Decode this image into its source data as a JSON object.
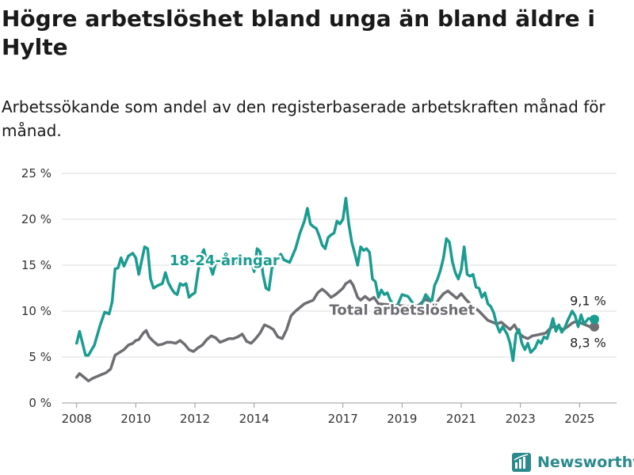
{
  "title": "Högre arbetslöshet bland unga än bland äldre i Hylte",
  "subtitle": "Arbetssökande som andel av den registerbaserade arbetskraften månad för månad.",
  "brand": "Newsworthy",
  "chart_data": {
    "type": "line",
    "ylim": [
      0,
      25
    ],
    "xlim": [
      2007.5,
      2026.25
    ],
    "y_ticks": [
      {
        "value": 0,
        "label": "0 %"
      },
      {
        "value": 5,
        "label": "5 %"
      },
      {
        "value": 10,
        "label": "10 %"
      },
      {
        "value": 15,
        "label": "15 %"
      },
      {
        "value": 20,
        "label": "20 %"
      },
      {
        "value": 25,
        "label": "25 %"
      }
    ],
    "x_ticks": [
      {
        "value": 2008,
        "label": "2008"
      },
      {
        "value": 2010,
        "label": "2010"
      },
      {
        "value": 2012,
        "label": "2012"
      },
      {
        "value": 2014,
        "label": "2014"
      },
      {
        "value": 2017,
        "label": "2017"
      },
      {
        "value": 2019,
        "label": "2019"
      },
      {
        "value": 2021,
        "label": "2021"
      },
      {
        "value": 2023,
        "label": "2023"
      },
      {
        "value": 2025,
        "label": "2025"
      }
    ],
    "grid": true,
    "series": [
      {
        "name": "18-24-åringar",
        "color": "#1a9c90",
        "end_label": "9,1 %",
        "points": [
          [
            2008.0,
            6.5
          ],
          [
            2008.1,
            7.8
          ],
          [
            2008.3,
            5.2
          ],
          [
            2008.4,
            5.2
          ],
          [
            2008.6,
            6.3
          ],
          [
            2008.8,
            8.5
          ],
          [
            2008.95,
            9.9
          ],
          [
            2009.1,
            9.7
          ],
          [
            2009.2,
            11.0
          ],
          [
            2009.3,
            14.6
          ],
          [
            2009.4,
            14.7
          ],
          [
            2009.5,
            15.8
          ],
          [
            2009.6,
            14.9
          ],
          [
            2009.75,
            16.0
          ],
          [
            2009.9,
            16.3
          ],
          [
            2010.0,
            15.8
          ],
          [
            2010.1,
            14.0
          ],
          [
            2010.2,
            15.5
          ],
          [
            2010.3,
            17.0
          ],
          [
            2010.4,
            16.8
          ],
          [
            2010.5,
            13.5
          ],
          [
            2010.6,
            12.5
          ],
          [
            2010.75,
            12.8
          ],
          [
            2010.9,
            13.0
          ],
          [
            2011.0,
            14.2
          ],
          [
            2011.1,
            13.1
          ],
          [
            2011.2,
            12.5
          ],
          [
            2011.3,
            12.0
          ],
          [
            2011.4,
            11.8
          ],
          [
            2011.5,
            13.0
          ],
          [
            2011.6,
            12.8
          ],
          [
            2011.7,
            13.0
          ],
          [
            2011.8,
            11.5
          ],
          [
            2011.9,
            11.8
          ],
          [
            2012.0,
            12.0
          ],
          [
            2012.1,
            14.2
          ],
          [
            2012.2,
            16.0
          ],
          [
            2012.3,
            16.7
          ],
          [
            2012.4,
            15.3
          ],
          [
            2012.5,
            15.0
          ],
          [
            2012.6,
            14.0
          ],
          [
            2012.7,
            15.2
          ],
          [
            2013.0,
            15.5
          ],
          [
            2013.3,
            15.3
          ],
          [
            2013.6,
            15.2
          ],
          [
            2013.9,
            15.4
          ],
          [
            2014.0,
            14.3
          ],
          [
            2014.1,
            16.8
          ],
          [
            2014.2,
            16.5
          ],
          [
            2014.3,
            14.0
          ],
          [
            2014.4,
            12.5
          ],
          [
            2014.5,
            12.3
          ],
          [
            2014.6,
            14.7
          ],
          [
            2014.7,
            15.2
          ],
          [
            2014.8,
            15.8
          ],
          [
            2014.9,
            16.2
          ],
          [
            2015.0,
            15.6
          ],
          [
            2015.2,
            15.3
          ],
          [
            2015.4,
            16.8
          ],
          [
            2015.55,
            18.5
          ],
          [
            2015.7,
            19.8
          ],
          [
            2015.8,
            21.2
          ],
          [
            2015.9,
            19.5
          ],
          [
            2016.0,
            19.2
          ],
          [
            2016.1,
            19.0
          ],
          [
            2016.2,
            18.2
          ],
          [
            2016.3,
            17.2
          ],
          [
            2016.4,
            16.8
          ],
          [
            2016.5,
            18.0
          ],
          [
            2016.6,
            18.3
          ],
          [
            2016.7,
            18.5
          ],
          [
            2016.8,
            19.8
          ],
          [
            2016.9,
            19.5
          ],
          [
            2017.0,
            20.0
          ],
          [
            2017.1,
            22.3
          ],
          [
            2017.2,
            19.5
          ],
          [
            2017.3,
            17.5
          ],
          [
            2017.4,
            16.3
          ],
          [
            2017.5,
            15.0
          ],
          [
            2017.6,
            17.0
          ],
          [
            2017.7,
            16.6
          ],
          [
            2017.8,
            16.8
          ],
          [
            2017.9,
            16.4
          ],
          [
            2018.0,
            13.5
          ],
          [
            2018.1,
            13.2
          ],
          [
            2018.2,
            11.5
          ],
          [
            2018.3,
            12.3
          ],
          [
            2018.4,
            11.8
          ],
          [
            2018.5,
            12.0
          ],
          [
            2018.6,
            11.2
          ],
          [
            2018.8,
            10.3
          ],
          [
            2019.0,
            11.8
          ],
          [
            2019.2,
            11.6
          ],
          [
            2019.4,
            10.7
          ],
          [
            2019.6,
            10.3
          ],
          [
            2019.8,
            11.8
          ],
          [
            2019.95,
            11.2
          ],
          [
            2020.0,
            11.0
          ],
          [
            2020.1,
            12.8
          ],
          [
            2020.2,
            13.5
          ],
          [
            2020.3,
            14.5
          ],
          [
            2020.4,
            15.8
          ],
          [
            2020.5,
            17.9
          ],
          [
            2020.6,
            17.5
          ],
          [
            2020.7,
            15.4
          ],
          [
            2020.8,
            14.2
          ],
          [
            2020.9,
            13.5
          ],
          [
            2021.0,
            14.5
          ],
          [
            2021.1,
            17.0
          ],
          [
            2021.2,
            14.0
          ],
          [
            2021.3,
            13.8
          ],
          [
            2021.4,
            14.0
          ],
          [
            2021.5,
            12.6
          ],
          [
            2021.6,
            12.5
          ],
          [
            2021.7,
            11.5
          ],
          [
            2021.8,
            12.0
          ],
          [
            2021.9,
            10.8
          ],
          [
            2022.0,
            10.5
          ],
          [
            2022.1,
            9.8
          ],
          [
            2022.2,
            8.5
          ],
          [
            2022.3,
            7.7
          ],
          [
            2022.4,
            8.3
          ],
          [
            2022.55,
            7.5
          ],
          [
            2022.65,
            6.5
          ],
          [
            2022.75,
            4.6
          ],
          [
            2022.85,
            7.5
          ],
          [
            2022.95,
            8.0
          ],
          [
            2023.05,
            6.5
          ],
          [
            2023.15,
            5.8
          ],
          [
            2023.25,
            6.5
          ],
          [
            2023.35,
            5.5
          ],
          [
            2023.5,
            6.0
          ],
          [
            2023.6,
            6.8
          ],
          [
            2023.7,
            6.5
          ],
          [
            2023.8,
            7.2
          ],
          [
            2023.9,
            7.0
          ],
          [
            2024.0,
            8.0
          ],
          [
            2024.1,
            9.2
          ],
          [
            2024.2,
            7.8
          ],
          [
            2024.3,
            8.5
          ],
          [
            2024.4,
            7.7
          ],
          [
            2024.5,
            8.2
          ],
          [
            2024.6,
            9.0
          ],
          [
            2024.75,
            10.0
          ],
          [
            2024.85,
            9.5
          ],
          [
            2024.95,
            8.3
          ],
          [
            2025.05,
            9.6
          ],
          [
            2025.15,
            8.6
          ],
          [
            2025.3,
            9.2
          ],
          [
            2025.5,
            9.1
          ]
        ]
      },
      {
        "name": "Total arbetslöshet",
        "color": "#6e6d72",
        "end_label": "8,3 %",
        "points": [
          [
            2008.0,
            2.8
          ],
          [
            2008.1,
            3.2
          ],
          [
            2008.25,
            2.8
          ],
          [
            2008.4,
            2.4
          ],
          [
            2008.55,
            2.7
          ],
          [
            2008.7,
            2.9
          ],
          [
            2008.85,
            3.1
          ],
          [
            2009.0,
            3.3
          ],
          [
            2009.15,
            3.7
          ],
          [
            2009.3,
            5.2
          ],
          [
            2009.45,
            5.5
          ],
          [
            2009.6,
            5.8
          ],
          [
            2009.75,
            6.3
          ],
          [
            2009.9,
            6.5
          ],
          [
            2010.0,
            6.8
          ],
          [
            2010.1,
            6.9
          ],
          [
            2010.25,
            7.6
          ],
          [
            2010.35,
            7.9
          ],
          [
            2010.45,
            7.2
          ],
          [
            2010.6,
            6.7
          ],
          [
            2010.75,
            6.3
          ],
          [
            2010.9,
            6.4
          ],
          [
            2011.05,
            6.6
          ],
          [
            2011.2,
            6.6
          ],
          [
            2011.35,
            6.5
          ],
          [
            2011.5,
            6.8
          ],
          [
            2011.65,
            6.4
          ],
          [
            2011.8,
            5.8
          ],
          [
            2011.95,
            5.6
          ],
          [
            2012.1,
            6.0
          ],
          [
            2012.25,
            6.3
          ],
          [
            2012.4,
            6.9
          ],
          [
            2012.55,
            7.3
          ],
          [
            2012.7,
            7.1
          ],
          [
            2012.85,
            6.6
          ],
          [
            2013.0,
            6.8
          ],
          [
            2013.15,
            7.0
          ],
          [
            2013.3,
            7.0
          ],
          [
            2013.45,
            7.2
          ],
          [
            2013.6,
            7.5
          ],
          [
            2013.75,
            6.7
          ],
          [
            2013.9,
            6.5
          ],
          [
            2014.05,
            7.0
          ],
          [
            2014.2,
            7.6
          ],
          [
            2014.35,
            8.5
          ],
          [
            2014.5,
            8.3
          ],
          [
            2014.65,
            8.0
          ],
          [
            2014.8,
            7.2
          ],
          [
            2014.95,
            7.0
          ],
          [
            2015.1,
            8.0
          ],
          [
            2015.25,
            9.5
          ],
          [
            2015.4,
            10.0
          ],
          [
            2015.55,
            10.4
          ],
          [
            2015.7,
            10.8
          ],
          [
            2015.85,
            11.0
          ],
          [
            2016.0,
            11.2
          ],
          [
            2016.15,
            12.0
          ],
          [
            2016.3,
            12.4
          ],
          [
            2016.45,
            12.0
          ],
          [
            2016.6,
            11.5
          ],
          [
            2016.75,
            11.8
          ],
          [
            2016.9,
            12.2
          ],
          [
            2017.0,
            12.5
          ],
          [
            2017.1,
            13.0
          ],
          [
            2017.25,
            13.3
          ],
          [
            2017.35,
            12.8
          ],
          [
            2017.5,
            11.5
          ],
          [
            2017.6,
            11.2
          ],
          [
            2017.75,
            11.6
          ],
          [
            2017.9,
            11.2
          ],
          [
            2018.05,
            11.5
          ],
          [
            2018.2,
            10.8
          ],
          [
            2019.3,
            10.5
          ],
          [
            2019.5,
            10.5
          ],
          [
            2019.65,
            10.9
          ],
          [
            2019.8,
            11.3
          ],
          [
            2019.95,
            11.0
          ],
          [
            2020.1,
            10.6
          ],
          [
            2020.25,
            11.3
          ],
          [
            2020.4,
            11.9
          ],
          [
            2020.55,
            12.2
          ],
          [
            2020.7,
            11.8
          ],
          [
            2020.85,
            11.4
          ],
          [
            2021.0,
            11.9
          ],
          [
            2021.15,
            11.3
          ],
          [
            2021.3,
            10.8
          ],
          [
            2021.45,
            10.4
          ],
          [
            2021.6,
            10.0
          ],
          [
            2021.75,
            9.5
          ],
          [
            2021.9,
            9.0
          ],
          [
            2022.05,
            8.8
          ],
          [
            2022.2,
            8.6
          ],
          [
            2022.35,
            8.8
          ],
          [
            2022.5,
            8.4
          ],
          [
            2022.65,
            8.0
          ],
          [
            2022.8,
            8.5
          ],
          [
            2022.95,
            7.6
          ],
          [
            2023.1,
            7.2
          ],
          [
            2023.25,
            7.0
          ],
          [
            2023.4,
            7.3
          ],
          [
            2023.55,
            7.4
          ],
          [
            2023.7,
            7.5
          ],
          [
            2023.85,
            7.6
          ],
          [
            2024.0,
            8.1
          ],
          [
            2024.15,
            8.4
          ],
          [
            2024.3,
            8.2
          ],
          [
            2024.45,
            8.0
          ],
          [
            2024.6,
            8.3
          ],
          [
            2024.75,
            8.7
          ],
          [
            2024.9,
            8.9
          ],
          [
            2025.05,
            8.7
          ],
          [
            2025.2,
            8.5
          ],
          [
            2025.35,
            8.3
          ],
          [
            2025.5,
            8.3
          ]
        ]
      }
    ],
    "annotations": [
      {
        "text": "18-24-åringar",
        "series": 0,
        "x": 2013.0,
        "y": 15.0
      },
      {
        "text": "Total arbetslöshet",
        "series": 1,
        "x": 2019.0,
        "y": 9.6
      }
    ]
  }
}
